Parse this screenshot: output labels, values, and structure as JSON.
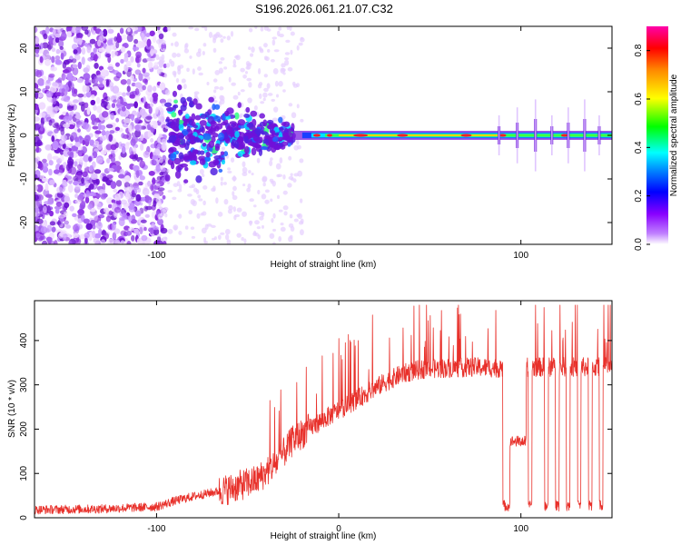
{
  "title": "S196.2026.061.21.07.C32",
  "colors": {
    "trace": "#e8302a",
    "frame": "#000000",
    "speckle": "#8a2be2"
  },
  "chart_data": [
    {
      "type": "heatmap",
      "name": "spectrogram",
      "xlabel": "Height of straight line (km)",
      "ylabel": "Frequency (Hz)",
      "xlim": [
        -167,
        150
      ],
      "ylim": [
        -25,
        25
      ],
      "xticks": [
        -100,
        0,
        100
      ],
      "yticks": [
        -20,
        -10,
        0,
        10,
        20
      ],
      "x_tick_labels": [
        "-100",
        "0",
        "100"
      ],
      "y_tick_labels": [
        "-20",
        "-10",
        "0",
        "10",
        "20"
      ],
      "colorbar": {
        "label": "Normalized spectral amplitude",
        "range": [
          0,
          0.9
        ],
        "ticks": [
          "0.0",
          "0.2",
          "0.4",
          "0.6",
          "0.8"
        ],
        "colormap": [
          "#ffffff",
          "#8800ff",
          "#0000ff",
          "#00ffff",
          "#00ff00",
          "#ffff00",
          "#ff0000",
          "#ff00aa"
        ]
      },
      "features": {
        "noise_region_x": [
          -167,
          -95
        ],
        "blob_region_x": [
          -95,
          -25
        ],
        "line_region_x": [
          -25,
          150
        ],
        "line_freq_hz": 0,
        "harmonic_spikes_x": [
          88,
          98,
          108,
          117,
          126,
          135,
          143
        ]
      }
    },
    {
      "type": "line",
      "name": "snr",
      "xlabel": "Height of straight line (km)",
      "ylabel": "SNR (10 * v/v)",
      "xlim": [
        -167,
        150
      ],
      "ylim": [
        0,
        490
      ],
      "xticks": [
        -100,
        0,
        100
      ],
      "yticks": [
        0,
        100,
        200,
        300,
        400
      ],
      "x_tick_labels": [
        "-100",
        "0",
        "100"
      ],
      "y_tick_labels": [
        "0",
        "100",
        "200",
        "300",
        "400"
      ],
      "baseline": [
        {
          "x": -167,
          "y": 18
        },
        {
          "x": -130,
          "y": 20
        },
        {
          "x": -100,
          "y": 25
        },
        {
          "x": -90,
          "y": 38
        },
        {
          "x": -80,
          "y": 48
        },
        {
          "x": -60,
          "y": 65
        },
        {
          "x": -45,
          "y": 85
        },
        {
          "x": -35,
          "y": 120
        },
        {
          "x": -25,
          "y": 175
        },
        {
          "x": -15,
          "y": 205
        },
        {
          "x": -5,
          "y": 230
        },
        {
          "x": 5,
          "y": 255
        },
        {
          "x": 15,
          "y": 280
        },
        {
          "x": 25,
          "y": 305
        },
        {
          "x": 35,
          "y": 325
        },
        {
          "x": 45,
          "y": 335
        },
        {
          "x": 60,
          "y": 338
        },
        {
          "x": 75,
          "y": 340
        },
        {
          "x": 89,
          "y": 338
        }
      ],
      "dropouts": [
        {
          "from": 90,
          "to": 94,
          "min": 15
        },
        {
          "from": 94,
          "to": 103,
          "min": 160
        },
        {
          "from": 104,
          "to": 106,
          "min": 15
        },
        {
          "from": 113,
          "to": 115,
          "min": 15
        },
        {
          "from": 119,
          "to": 121,
          "min": 15
        },
        {
          "from": 125,
          "to": 127,
          "min": 15
        },
        {
          "from": 131,
          "to": 133,
          "min": 15
        },
        {
          "from": 137,
          "to": 139,
          "min": 15
        },
        {
          "from": 143,
          "to": 145,
          "min": 15
        }
      ],
      "tail_level": 340
    }
  ]
}
